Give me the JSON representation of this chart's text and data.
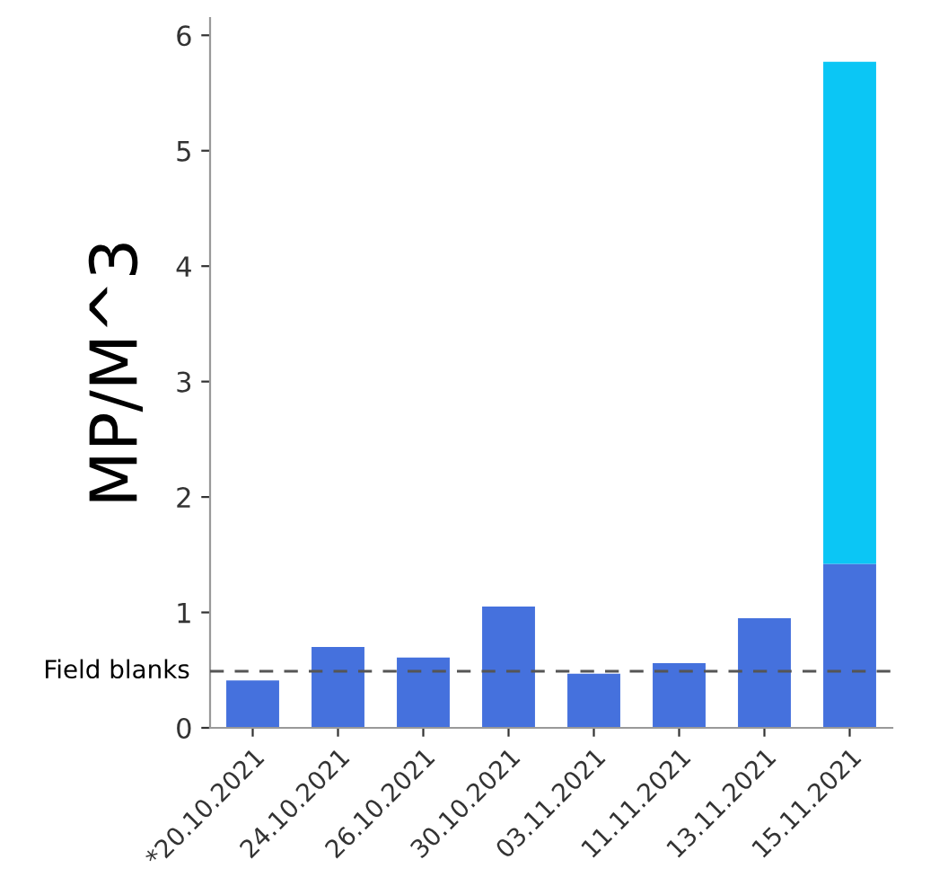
{
  "chart_data": {
    "type": "bar",
    "stacked": true,
    "ylabel": "MP/M^3",
    "categories": [
      "*20.10.2021",
      "24.10.2021",
      "26.10.2021",
      "30.10.2021",
      "03.11.2021",
      "11.11.2021",
      "13.11.2021",
      "15.11.2021"
    ],
    "series": [
      {
        "color": "#4571dd",
        "values": [
          0.41,
          0.7,
          0.61,
          1.05,
          0.47,
          0.56,
          0.95,
          1.42
        ]
      },
      {
        "color": "#0bc6f5",
        "values": [
          null,
          null,
          null,
          null,
          null,
          null,
          null,
          4.35
        ]
      }
    ],
    "ylim": [
      0,
      6.15
    ],
    "yticks": [
      0,
      1,
      2,
      3,
      4,
      5,
      6
    ],
    "grid": false,
    "legend": false,
    "ref_lines": [
      {
        "axis": "y",
        "value": 0.49,
        "label": "Field blanks",
        "color": "#555555",
        "line_style": "dashed"
      }
    ]
  }
}
